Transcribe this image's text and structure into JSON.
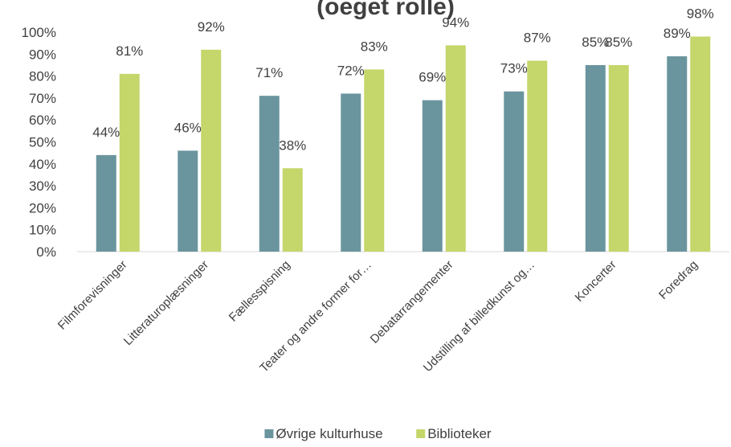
{
  "chart_data": {
    "type": "bar",
    "title": "(oeget rolle)",
    "categories": [
      "Filmforevisninger",
      "Litteraturoplæsninger",
      "Fællesspisning",
      "Teater og andre former for…",
      "Debatarrangementer",
      "Udstilling af billedkunst og…",
      "Koncerter",
      "Foredrag"
    ],
    "series": [
      {
        "name": "Øvrige kulturhuse",
        "color": "#6a959e",
        "values": [
          44,
          46,
          71,
          72,
          69,
          73,
          85,
          89
        ]
      },
      {
        "name": "Biblioteker",
        "color": "#c5d66a",
        "values": [
          81,
          92,
          38,
          83,
          94,
          87,
          85,
          98
        ]
      }
    ],
    "value_suffix": "%",
    "y_ticks": [
      "0%",
      "10%",
      "20%",
      "30%",
      "40%",
      "50%",
      "60%",
      "70%",
      "80%",
      "90%",
      "100%"
    ],
    "ylim": [
      0,
      100
    ],
    "grid": false,
    "legend_position": "bottom"
  }
}
